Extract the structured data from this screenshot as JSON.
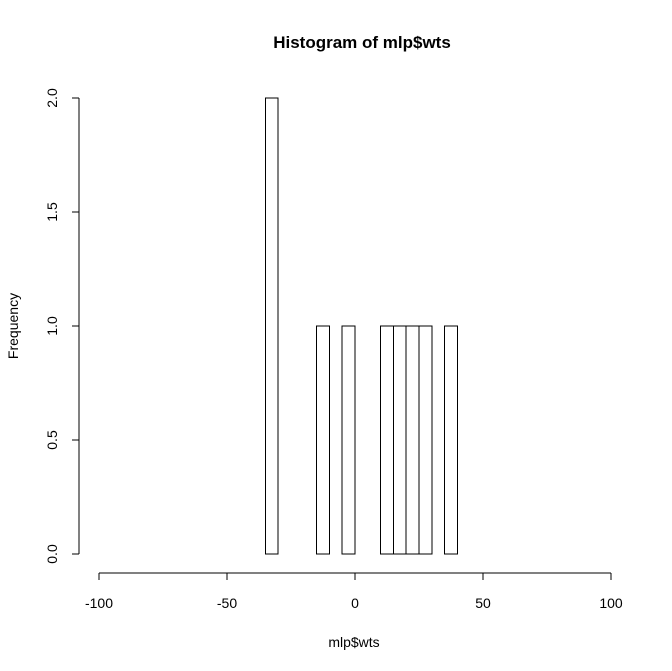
{
  "chart_data": {
    "type": "bar",
    "title": "Histogram of mlp$wts",
    "xlabel": "mlp$wts",
    "ylabel": "Frequency",
    "xlim": [
      -100,
      100
    ],
    "ylim": [
      0,
      2
    ],
    "xticks": [
      "-100",
      "-50",
      "0",
      "50",
      "100"
    ],
    "yticks": [
      "0.0",
      "0.5",
      "1.0",
      "1.5",
      "2.0"
    ],
    "bin_width": 5,
    "bins": [
      {
        "start": -100,
        "end": -95,
        "count": 0
      },
      {
        "start": -95,
        "end": -90,
        "count": 0
      },
      {
        "start": -90,
        "end": -85,
        "count": 0
      },
      {
        "start": -85,
        "end": -80,
        "count": 0
      },
      {
        "start": -80,
        "end": -75,
        "count": 0
      },
      {
        "start": -75,
        "end": -70,
        "count": 0
      },
      {
        "start": -70,
        "end": -65,
        "count": 0
      },
      {
        "start": -65,
        "end": -60,
        "count": 0
      },
      {
        "start": -60,
        "end": -55,
        "count": 0
      },
      {
        "start": -55,
        "end": -50,
        "count": 0
      },
      {
        "start": -50,
        "end": -45,
        "count": 0
      },
      {
        "start": -45,
        "end": -40,
        "count": 0
      },
      {
        "start": -40,
        "end": -35,
        "count": 0
      },
      {
        "start": -35,
        "end": -30,
        "count": 2
      },
      {
        "start": -30,
        "end": -25,
        "count": 0
      },
      {
        "start": -25,
        "end": -20,
        "count": 0
      },
      {
        "start": -20,
        "end": -15,
        "count": 0
      },
      {
        "start": -15,
        "end": -10,
        "count": 1
      },
      {
        "start": -10,
        "end": -5,
        "count": 0
      },
      {
        "start": -5,
        "end": 0,
        "count": 1
      },
      {
        "start": 0,
        "end": 5,
        "count": 0
      },
      {
        "start": 5,
        "end": 10,
        "count": 0
      },
      {
        "start": 10,
        "end": 15,
        "count": 1
      },
      {
        "start": 15,
        "end": 20,
        "count": 1
      },
      {
        "start": 20,
        "end": 25,
        "count": 1
      },
      {
        "start": 25,
        "end": 30,
        "count": 1
      },
      {
        "start": 30,
        "end": 35,
        "count": 0
      },
      {
        "start": 35,
        "end": 40,
        "count": 1
      },
      {
        "start": 40,
        "end": 45,
        "count": 0
      },
      {
        "start": 45,
        "end": 50,
        "count": 0
      },
      {
        "start": 50,
        "end": 55,
        "count": 0
      },
      {
        "start": 55,
        "end": 60,
        "count": 0
      },
      {
        "start": 60,
        "end": 65,
        "count": 0
      },
      {
        "start": 65,
        "end": 70,
        "count": 0
      },
      {
        "start": 70,
        "end": 75,
        "count": 0
      },
      {
        "start": 75,
        "end": 80,
        "count": 0
      },
      {
        "start": 80,
        "end": 85,
        "count": 0
      },
      {
        "start": 85,
        "end": 90,
        "count": 0
      },
      {
        "start": 90,
        "end": 95,
        "count": 0
      },
      {
        "start": 95,
        "end": 100,
        "count": 0
      }
    ],
    "grid": false,
    "bar_fill": "#ffffff",
    "bar_stroke": "#000000"
  }
}
